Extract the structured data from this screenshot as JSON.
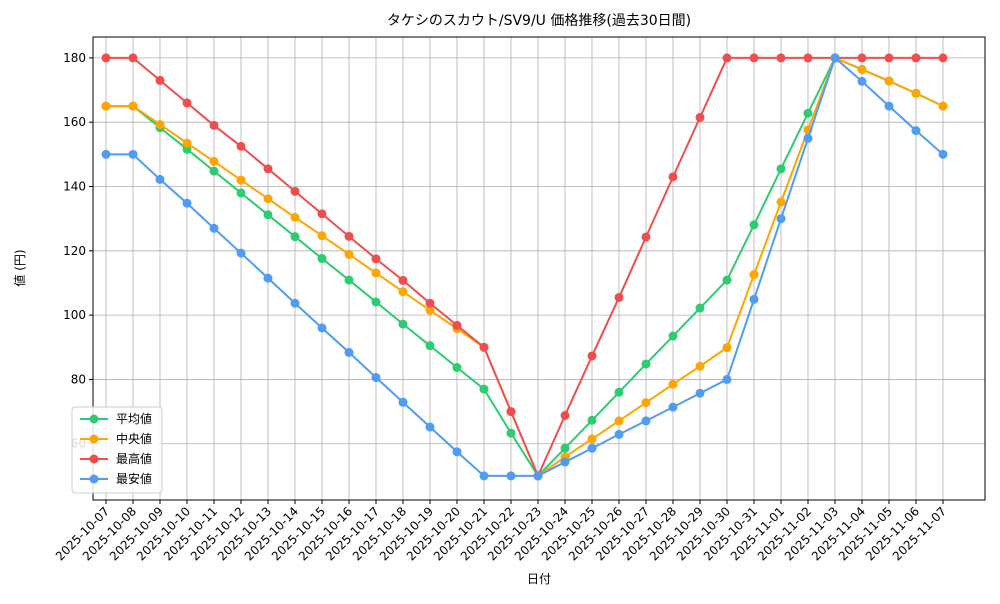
{
  "chart_data": {
    "type": "line",
    "title": "タケシのスカウト/SV9/U 価格推移(過去30日間)",
    "x_label": "日付",
    "y_label": "値 (円)",
    "categories": [
      "2025-10-07",
      "2025-10-08",
      "2025-10-09",
      "2025-10-10",
      "2025-10-11",
      "2025-10-12",
      "2025-10-13",
      "2025-10-14",
      "2025-10-15",
      "2025-10-16",
      "2025-10-17",
      "2025-10-18",
      "2025-10-19",
      "2025-10-20",
      "2025-10-21",
      "2025-10-22",
      "2025-10-23",
      "2025-10-24",
      "2025-10-25",
      "2025-10-26",
      "2025-10-27",
      "2025-10-28",
      "2025-10-29",
      "2025-10-30",
      "2025-10-31",
      "2025-11-01",
      "2025-11-02",
      "2025-11-03",
      "2025-11-04",
      "2025-11-05",
      "2025-11-06",
      "2025-11-07"
    ],
    "series": [
      {
        "name": "平均値",
        "color": "#2ecc71",
        "values": [
          165,
          165,
          158.3,
          151.6,
          144.8,
          138,
          131.2,
          124.4,
          117.6,
          110.9,
          104.1,
          97.2,
          90.5,
          83.7,
          77,
          63.3,
          50,
          58.6,
          67.3,
          76,
          84.8,
          93.5,
          102.2,
          110.9,
          128.1,
          145.5,
          162.8,
          180,
          176.4,
          172.8,
          169,
          165
        ]
      },
      {
        "name": "中央値",
        "color": "#ffa500",
        "values": [
          165,
          165,
          159.3,
          153.5,
          147.8,
          142,
          136.2,
          130.4,
          124.7,
          118.9,
          113.1,
          107.3,
          101.5,
          95.8,
          90,
          70,
          50,
          55.9,
          61.5,
          67.1,
          72.8,
          78.5,
          84.1,
          89.9,
          112.6,
          135.2,
          157.6,
          180,
          176.4,
          172.8,
          169,
          165
        ]
      },
      {
        "name": "最高値",
        "color": "#f04e4e",
        "values": [
          180,
          180,
          173,
          166,
          159,
          152.5,
          145.5,
          138.5,
          131.5,
          124.5,
          117.5,
          110.8,
          103.7,
          96.8,
          90,
          70,
          50,
          68.8,
          87.3,
          105.5,
          124.3,
          143,
          161.5,
          180,
          180,
          180,
          180,
          180,
          180,
          180,
          180,
          180
        ]
      },
      {
        "name": "最安値",
        "color": "#4e9cf5",
        "values": [
          150,
          150,
          142.2,
          134.8,
          127,
          119.3,
          111.5,
          103.7,
          96,
          88.4,
          80.6,
          72.9,
          65.2,
          57.5,
          50,
          50,
          50,
          54.3,
          58.6,
          62.9,
          67.1,
          71.4,
          75.7,
          80,
          104.9,
          130,
          155,
          180,
          172.7,
          165,
          157.4,
          150
        ]
      }
    ],
    "ylim": [
      42.5,
      186.5
    ],
    "yticks": [
      60,
      80,
      100,
      120,
      140,
      160,
      180
    ],
    "grid": true,
    "legend": "lower left"
  }
}
